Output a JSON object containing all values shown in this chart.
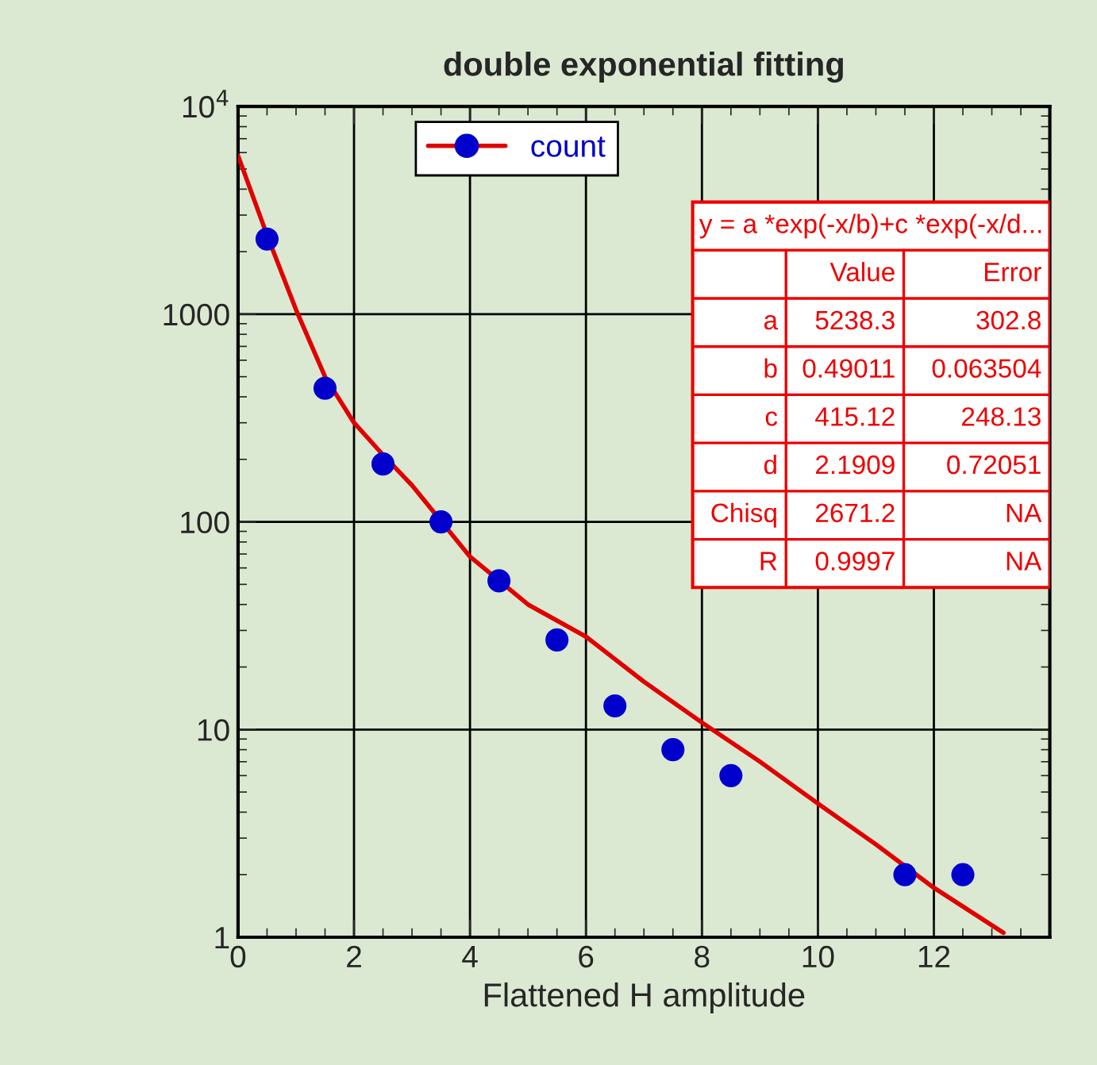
{
  "chart_data": {
    "type": "scatter",
    "title": "double exponential fitting",
    "xlabel": "Flattened H amplitude",
    "xlim": [
      0,
      14
    ],
    "xticks": [
      0,
      2,
      4,
      6,
      8,
      10,
      12,
      {
        "value": 14,
        "label": null
      }
    ],
    "ylim": [
      1,
      10000
    ],
    "yticks": [
      1,
      10,
      100,
      1000,
      {
        "value": 10000,
        "label": "10$^{4}$"
      }
    ],
    "log": "y",
    "grid": true,
    "legend": "top left",
    "marker": "circle",
    "series": [
      {
        "name": "count",
        "color": "#0000cc",
        "x": [
          0.5,
          1.5,
          2.5,
          3.5,
          4.5,
          5.5,
          6.5,
          7.5,
          8.5,
          11.5,
          12.5
        ],
        "values": [
          2300,
          440,
          190,
          100,
          52,
          27,
          13,
          8,
          6,
          2,
          2
        ]
      },
      {
        "type": "line",
        "color": "#e00000",
        "marker": "none",
        "x": [
          0,
          0.5,
          1,
          1.5,
          2,
          2.5,
          3,
          4,
          5,
          6,
          7,
          8,
          9,
          10,
          11,
          12,
          13.2
        ],
        "values": [
          5800,
          2400,
          1050,
          500,
          300,
          210,
          150,
          68,
          40,
          28,
          17,
          10.8,
          7,
          4.4,
          2.8,
          1.73,
          1.05
        ]
      }
    ],
    "annotations": [
      "y = a *exp(-x/b)+c *exp(-x/d...",
      "Value",
      "Error",
      "a",
      "5238.3",
      "302.8",
      "b",
      "0.49011",
      "0.063504",
      "c",
      "415.12",
      "248.13",
      "d",
      "2.1909",
      "0.72051",
      "Chisq",
      "2671.2",
      "NA",
      "R",
      "0.9997",
      "NA"
    ]
  }
}
